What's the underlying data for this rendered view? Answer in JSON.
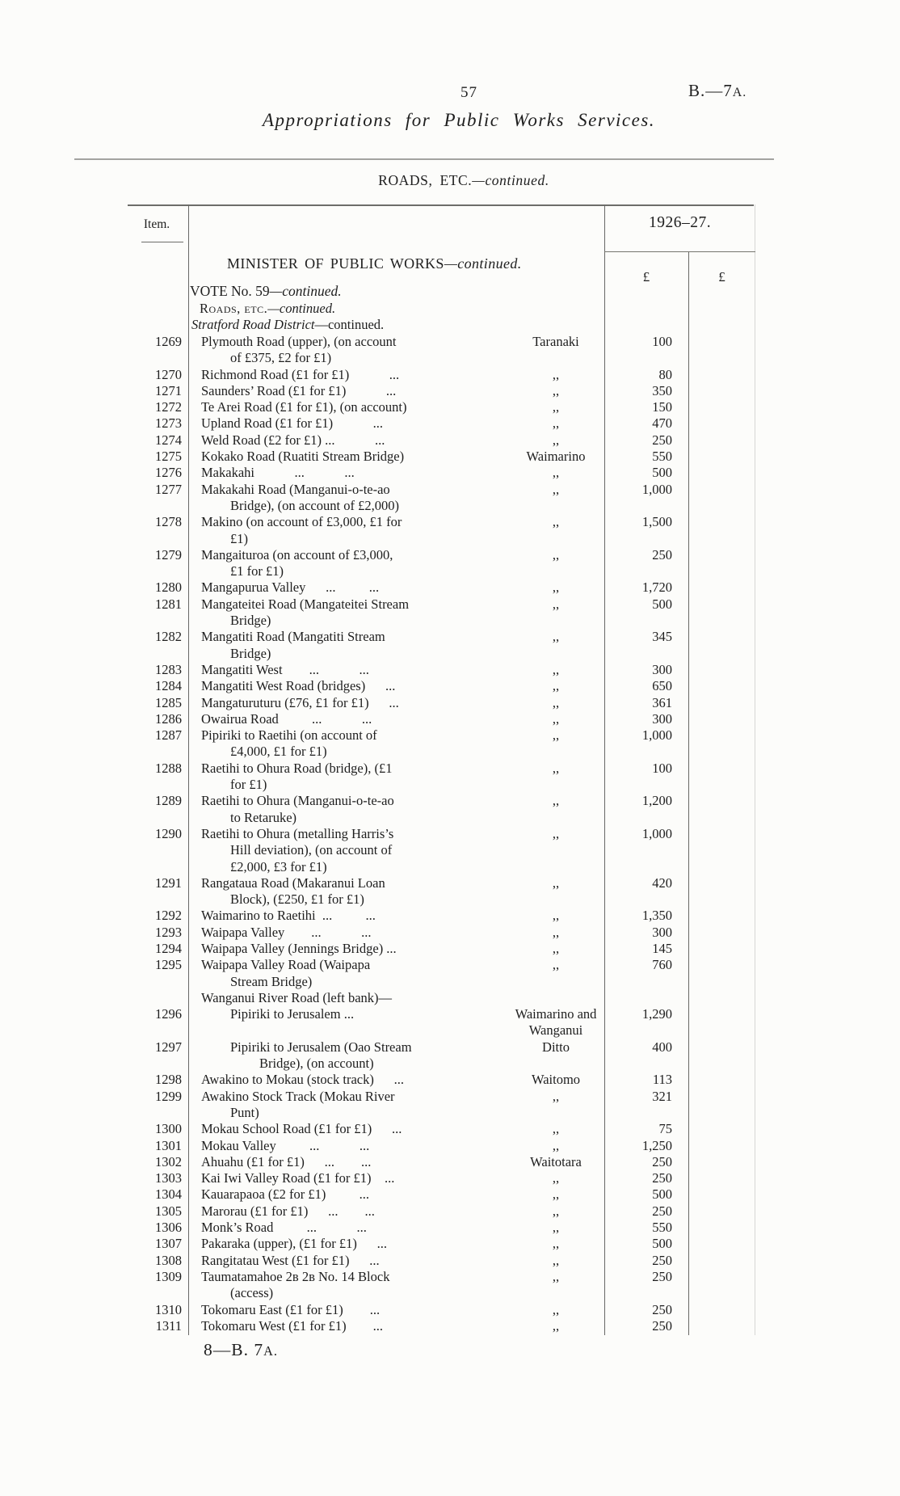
{
  "page": {
    "page_number": "57",
    "doc_ref": {
      "pre": "B.—7",
      "suf": "A."
    },
    "title": "Appropriations for Public Works Services.",
    "section": {
      "main": "ROADS, ETC.",
      "cont": "—continued."
    },
    "footer": {
      "pre": "8—B. 7",
      "suf": "A."
    }
  },
  "table": {
    "item_col_header": "Item.",
    "year_header": "1926–27.",
    "currency_symbol_col1": "£",
    "currency_symbol_col2": "£",
    "minister_heading": {
      "main": "MINISTER OF PUBLIC WORKS",
      "cont": "—continued."
    },
    "vote_heading": {
      "main": "VOTE No. 59",
      "cont": "—continued."
    },
    "roads_subheading": {
      "smallcaps": "Roads, etc.",
      "cont": "—continued."
    },
    "district_heading": {
      "italic": "Stratford Road District",
      "cont": "—continued."
    },
    "rows": [
      {
        "item": "1269",
        "desc": "Plymouth Road (upper), (on account\nof £375, £2 for £1)",
        "district": "Taranaki",
        "amount": "100",
        "style": ""
      },
      {
        "item": "1270",
        "desc": "Richmond Road (£1 for £1)   ...",
        "district": ",,",
        "amount": "80",
        "style": ""
      },
      {
        "item": "1271",
        "desc": "Saunders’ Road (£1 for £1)   ...",
        "district": ",,",
        "amount": "350",
        "style": ""
      },
      {
        "item": "1272",
        "desc": "Te Arei Road (£1 for £1), (on account)",
        "district": ",,",
        "amount": "150",
        "style": ""
      },
      {
        "item": "1273",
        "desc": "Upland Road (£1 for £1)   ...",
        "district": ",,",
        "amount": "470",
        "style": ""
      },
      {
        "item": "1274",
        "desc": "Weld Road (£2 for £1) ...   ...",
        "district": ",,",
        "amount": "250",
        "style": ""
      },
      {
        "item": "1275",
        "desc": "Kokako Road (Ruatiti Stream Bridge)",
        "district": "Waimarino",
        "amount": "550",
        "style": ""
      },
      {
        "item": "1276",
        "desc": "Makakahi   ...   ...",
        "district": ",,",
        "amount": "500",
        "style": ""
      },
      {
        "item": "1277",
        "desc": "Makakahi Road (Manganui-o-te-ao\nBridge), (on account of £2,000)",
        "district": ",,",
        "amount": "1,000",
        "style": ""
      },
      {
        "item": "1278",
        "desc": "Makino (on account of £3,000, £1 for\n£1)",
        "district": ",,",
        "amount": "1,500",
        "style": ""
      },
      {
        "item": "1279",
        "desc": "Mangaituroa (on account of £3,000,\n£1 for £1)",
        "district": ",,",
        "amount": "250",
        "style": ""
      },
      {
        "item": "1280",
        "desc": "Mangapurua Valley  ...   ...",
        "district": ",,",
        "amount": "1,720",
        "style": ""
      },
      {
        "item": "1281",
        "desc": "Mangateitei Road (Mangateitei Stream\nBridge)",
        "district": ",,",
        "amount": "500",
        "style": ""
      },
      {
        "item": "1282",
        "desc": "Mangatiti Road (Mangatiti Stream\nBridge)",
        "district": ",,",
        "amount": "345",
        "style": ""
      },
      {
        "item": "1283",
        "desc": "Mangatiti West  ...   ...",
        "district": ",,",
        "amount": "300",
        "style": ""
      },
      {
        "item": "1284",
        "desc": "Mangatiti West Road (bridges)  ...",
        "district": ",,",
        "amount": "650",
        "style": ""
      },
      {
        "item": "1285",
        "desc": "Mangaturuturu (£76, £1 for £1)  ...",
        "district": ",,",
        "amount": "361",
        "style": ""
      },
      {
        "item": "1286",
        "desc": "Owairua Road   ...   ...",
        "district": ",,",
        "amount": "300",
        "style": ""
      },
      {
        "item": "1287",
        "desc": "Pipiriki to Raetihi (on account of\n£4,000, £1 for £1)",
        "district": ",,",
        "amount": "1,000",
        "style": ""
      },
      {
        "item": "1288",
        "desc": "Raetihi to Ohura Road (bridge), (£1\nfor £1)",
        "district": ",,",
        "amount": "100",
        "style": ""
      },
      {
        "item": "1289",
        "desc": "Raetihi to Ohura (Manganui-o-te-ao\nto Retaruke)",
        "district": ",,",
        "amount": "1,200",
        "style": ""
      },
      {
        "item": "1290",
        "desc": "Raetihi to Ohura (metalling Harris’s\nHill deviation), (on account of\n£2,000, £3 for £1)",
        "district": ",,",
        "amount": "1,000",
        "style": ""
      },
      {
        "item": "1291",
        "desc": "Rangataua Road (Makaranui Loan\nBlock), (£250, £1 for £1)",
        "district": ",,",
        "amount": "420",
        "style": ""
      },
      {
        "item": "1292",
        "desc": "Waimarino to Raetihi ...   ...",
        "district": ",,",
        "amount": "1,350",
        "style": ""
      },
      {
        "item": "1293",
        "desc": "Waipapa Valley  ...   ...",
        "district": ",,",
        "amount": "300",
        "style": ""
      },
      {
        "item": "1294",
        "desc": "Waipapa Valley (Jennings Bridge) ...",
        "district": ",,",
        "amount": "145",
        "style": ""
      },
      {
        "item": "1295",
        "desc": "Waipapa Valley Road (Waipapa\nStream Bridge)",
        "district": ",,",
        "amount": "760",
        "style": ""
      },
      {
        "item": "",
        "desc": "Wanganui River Road (left bank)—",
        "district": "",
        "amount": "",
        "style": "heading"
      },
      {
        "item": "1296",
        "desc": "Pipiriki to Jerusalem ...",
        "district": "Waimarino and\nWanganui",
        "amount": "1,290",
        "style": "sub"
      },
      {
        "item": "1297",
        "desc": "Pipiriki to Jerusalem (Oao Stream\nBridge), (on account)",
        "district": "Ditto",
        "amount": "400",
        "style": "sub"
      },
      {
        "item": "1298",
        "desc": "Awakino to Mokau (stock track)  ...",
        "district": "Waitomo",
        "amount": "113",
        "style": ""
      },
      {
        "item": "1299",
        "desc": "Awakino Stock Track (Mokau River\nPunt)",
        "district": ",,",
        "amount": "321",
        "style": ""
      },
      {
        "item": "1300",
        "desc": "Mokau School Road (£1 for £1)  ...",
        "district": ",,",
        "amount": "75",
        "style": ""
      },
      {
        "item": "1301",
        "desc": "Mokau Valley   ...   ...",
        "district": ",,",
        "amount": "1,250",
        "style": ""
      },
      {
        "item": "1302",
        "desc": "Ahuahu (£1 for £1)  ...  ...",
        "district": "Waitotara",
        "amount": "250",
        "style": ""
      },
      {
        "item": "1303",
        "desc": "Kai Iwi Valley Road (£1 for £1) ...",
        "district": ",,",
        "amount": "250",
        "style": ""
      },
      {
        "item": "1304",
        "desc": "Kauarapaoa (£2 for £1)   ...",
        "district": ",,",
        "amount": "500",
        "style": ""
      },
      {
        "item": "1305",
        "desc": "Marorau (£1 for £1)  ...  ...",
        "district": ",,",
        "amount": "250",
        "style": ""
      },
      {
        "item": "1306",
        "desc": "Monk’s Road   ...   ...",
        "district": ",,",
        "amount": "550",
        "style": ""
      },
      {
        "item": "1307",
        "desc": "Pakaraka (upper), (£1 for £1)  ...",
        "district": ",,",
        "amount": "500",
        "style": ""
      },
      {
        "item": "1308",
        "desc": "Rangitatau West (£1 for £1)  ...",
        "district": ",,",
        "amount": "250",
        "style": ""
      },
      {
        "item": "1309",
        "desc": "Taumatamahoe 2ʙ 2ʙ No. 14 Block\n(access)",
        "district": ",,",
        "amount": "250",
        "style": ""
      },
      {
        "item": "1310",
        "desc": "Tokomaru East (£1 for £1)  ...",
        "district": ",,",
        "amount": "250",
        "style": ""
      },
      {
        "item": "1311",
        "desc": "Tokomaru West (£1 for £1)  ...",
        "district": ",,",
        "amount": "250",
        "style": ""
      }
    ]
  }
}
